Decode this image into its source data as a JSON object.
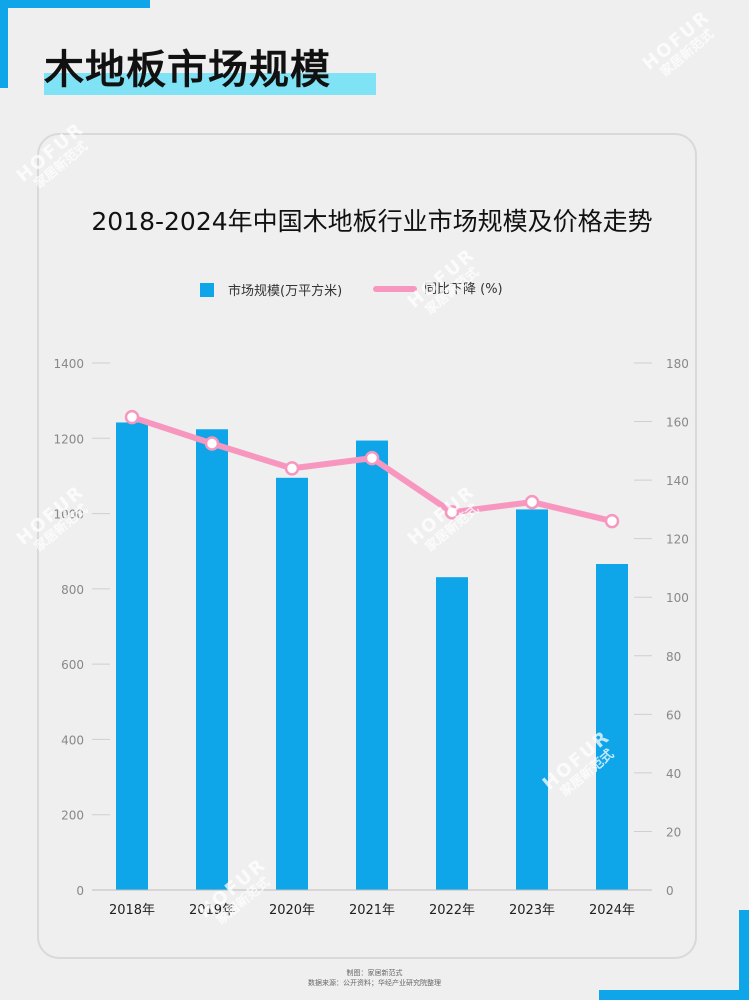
{
  "page": {
    "title": "木地板市场规模"
  },
  "watermark": {
    "en": "HOFUR",
    "cn": "家居新范式"
  },
  "footer": {
    "line1": "制图：家居新范式",
    "line2": "数据来源：公开资料；华经产业研究院整理"
  },
  "colors": {
    "accent": "#0ea5e9",
    "bar": "#0ea5e9",
    "line": "#f797bf",
    "title_highlight": "#7fe3f5"
  },
  "chart_data": {
    "type": "bar",
    "title": "2018-2024年中国木地板行业市场规模及价格走势",
    "categories": [
      "2018年",
      "2019年",
      "2020年",
      "2021年",
      "2022年",
      "2023年",
      "2024年"
    ],
    "series": [
      {
        "name": "市场规模(万平方米)",
        "type": "bar",
        "axis": "left",
        "values": [
          1242,
          1224,
          1095,
          1194,
          831,
          1011,
          866
        ]
      },
      {
        "name": "同比下降 (%)",
        "type": "line",
        "axis": "right",
        "values": [
          161.5,
          152.5,
          144,
          147.5,
          129,
          132.5,
          126
        ]
      }
    ],
    "y_left": {
      "min": 0,
      "max": 1400,
      "ticks": [
        "0",
        "200",
        "400",
        "600",
        "800",
        "1000",
        "1200",
        "1400"
      ]
    },
    "y_right": {
      "min": 0,
      "max": 180,
      "ticks": [
        "0",
        "20",
        "40",
        "60",
        "80",
        "100",
        "120",
        "140",
        "160",
        "180"
      ]
    },
    "legend_position": "top-center",
    "grid": true
  }
}
